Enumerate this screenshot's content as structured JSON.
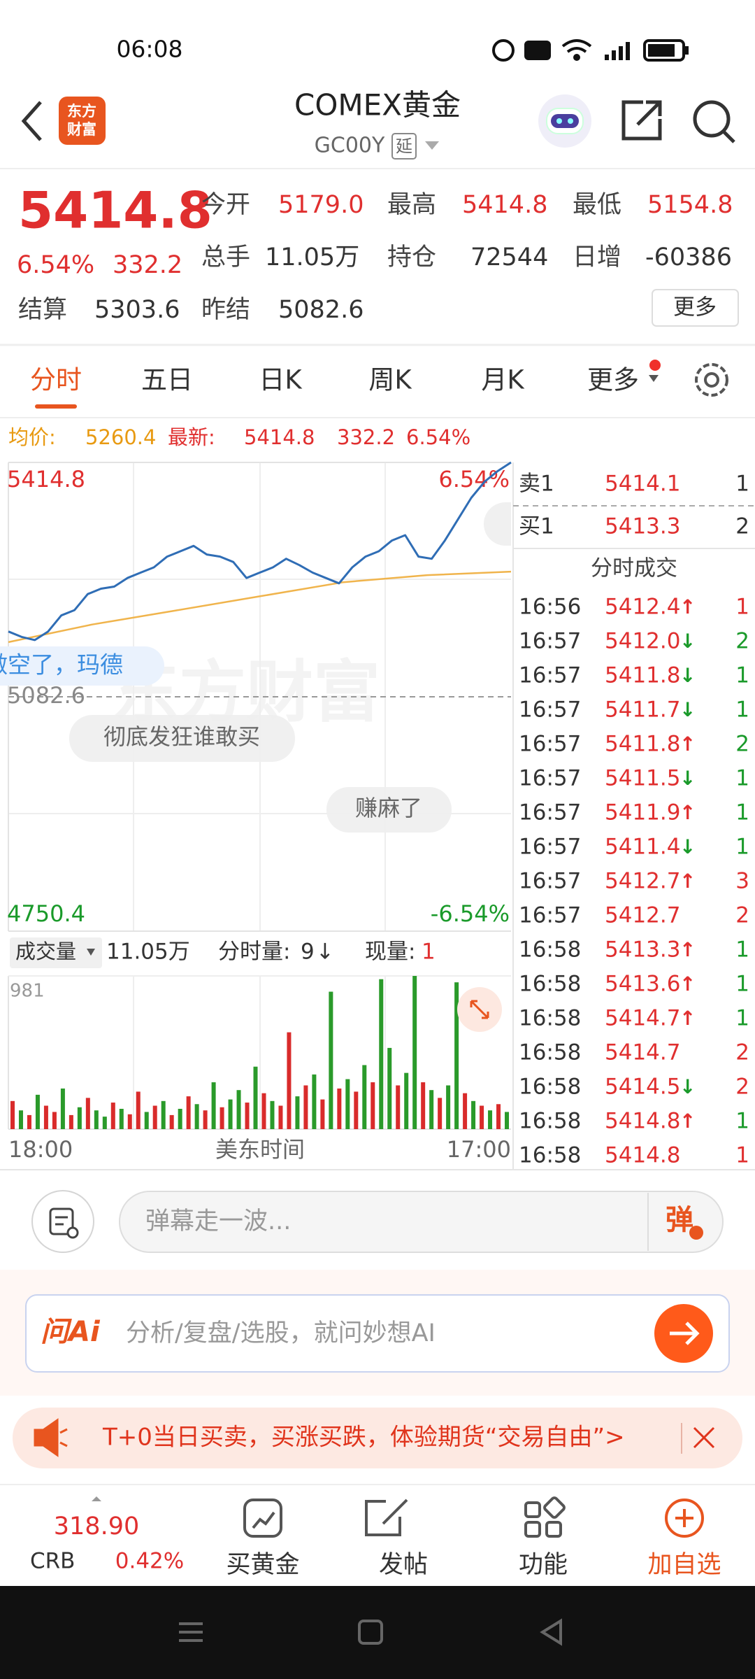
{
  "status_bar": {
    "time": "06:08"
  },
  "header": {
    "logo": [
      "东方",
      "财富"
    ],
    "title": "COMEX黄金",
    "code": "GC00Y",
    "badge": "延"
  },
  "quote": {
    "price": "5414.8",
    "change_pct": "6.54%",
    "change": "332.2",
    "stats": [
      {
        "label": "今开",
        "value": "5179.0",
        "color": "#e02f2f"
      },
      {
        "label": "最高",
        "value": "5414.8",
        "color": "#e02f2f"
      },
      {
        "label": "最低",
        "value": "5154.8",
        "color": "#e02f2f"
      },
      {
        "label": "总手",
        "value": "11.05万",
        "color": "#333333"
      },
      {
        "label": "持仓",
        "value": "72544",
        "color": "#333333"
      },
      {
        "label": "日增",
        "value": "-60386",
        "color": "#333333"
      },
      {
        "label": "结算",
        "value": "5303.6",
        "color": "#333333"
      },
      {
        "label": "昨结",
        "value": "5082.6",
        "color": "#333333"
      }
    ],
    "more": "更多"
  },
  "tabs": [
    "分时",
    "五日",
    "日K",
    "周K",
    "月K",
    "更多"
  ],
  "info": {
    "avg_label": "均价:",
    "avg": "5260.4",
    "last_label": "最新:",
    "last": "5414.8",
    "change": "332.2",
    "change_pct": "6.54%"
  },
  "chart_data": [
    {
      "type": "line",
      "series": [
        {
          "color": "#2f6db5",
          "values": [
            5175.1,
            5167.5,
            5163.0,
            5175.1,
            5197.9,
            5205.5,
            5228.2,
            5235.8,
            5238.8,
            5251.0,
            5258.6,
            5266.1,
            5281.3,
            5288.9,
            5296.5,
            5284.3,
            5281.3,
            5273.7,
            5251.0,
            5258.6,
            5266.1,
            5278.3,
            5269.2,
            5258.6,
            5251.0,
            5243.4,
            5266.1,
            5281.3,
            5288.9,
            5304.1,
            5311.7,
            5281.3,
            5278.3,
            5304.1,
            5334.4,
            5364.7,
            5387.5,
            5402.7,
            5414.8
          ]
        },
        {
          "color": "#f0b44c",
          "values": [
            5160,
            5185,
            5205,
            5225,
            5245,
            5255,
            5260
          ]
        }
      ],
      "ylim": [
        4750.4,
        5414.8
      ],
      "yticks": [
        4750.4,
        5082.6,
        5414.8
      ],
      "y2lim": [
        -6.54,
        6.54
      ],
      "y2ticks": [
        {
          "value": -6.54,
          "label": "-6.54%"
        },
        {
          "value": 6.54,
          "label": "6.54%"
        }
      ],
      "x_labels": [
        "18:00",
        "17:00"
      ],
      "xlabel": "美东时间",
      "grid": true
    },
    {
      "type": "bar",
      "header": {
        "label": "成交量",
        "total": "11.05万",
        "minute_label": "分时量:",
        "minute_value": "9",
        "minute_arrow": "↓",
        "current_label": "现量:",
        "current_value": "1"
      },
      "values": [
        180,
        120,
        90,
        220,
        150,
        110,
        260,
        90,
        140,
        200,
        120,
        80,
        170,
        130,
        95,
        240,
        110,
        150,
        180,
        90,
        130,
        210,
        160,
        120,
        300,
        140,
        190,
        250,
        170,
        400,
        230,
        180,
        150,
        620,
        210,
        280,
        350,
        190,
        880,
        260,
        320,
        240,
        410,
        300,
        960,
        520,
        280,
        360,
        981,
        300,
        250,
        200,
        280,
        940,
        230,
        180,
        150,
        120,
        160,
        110
      ],
      "colors": [
        "#d92b2b",
        "#2a9a2a",
        "#d92b2b",
        "#2a9a2a",
        "#d92b2b",
        "#d92b2b",
        "#2a9a2a",
        "#d92b2b",
        "#2a9a2a",
        "#d92b2b",
        "#2a9a2a",
        "#2a9a2a",
        "#d92b2b",
        "#2a9a2a",
        "#d92b2b",
        "#d92b2b",
        "#2a9a2a",
        "#d92b2b",
        "#2a9a2a",
        "#d92b2b",
        "#2a9a2a",
        "#d92b2b",
        "#2a9a2a",
        "#d92b2b",
        "#2a9a2a",
        "#d92b2b",
        "#2a9a2a",
        "#2a9a2a",
        "#d92b2b",
        "#2a9a2a",
        "#d92b2b",
        "#2a9a2a",
        "#d92b2b",
        "#d92b2b",
        "#2a9a2a",
        "#d92b2b",
        "#2a9a2a",
        "#d92b2b",
        "#2a9a2a",
        "#d92b2b",
        "#2a9a2a",
        "#d92b2b",
        "#2a9a2a",
        "#d92b2b",
        "#2a9a2a",
        "#2a9a2a",
        "#d92b2b",
        "#2a9a2a",
        "#2a9a2a",
        "#d92b2b",
        "#2a9a2a",
        "#d92b2b",
        "#2a9a2a",
        "#2a9a2a",
        "#d92b2b",
        "#2a9a2a",
        "#d92b2b",
        "#2a9a2a",
        "#d92b2b",
        "#2a9a2a"
      ],
      "ylim": [
        0,
        981
      ],
      "yticks": [
        981
      ]
    }
  ],
  "order_book": {
    "ask": {
      "label": "卖1",
      "price": "5414.1",
      "volume": "1"
    },
    "bid": {
      "label": "买1",
      "price": "5413.3",
      "volume": "2"
    },
    "title": "分时成交",
    "trades": [
      {
        "time": "16:56",
        "price": "5412.4",
        "arrow": "↑",
        "arrow_color": "#e02f2f",
        "volume": "1",
        "volume_color": "#e02f2f"
      },
      {
        "time": "16:57",
        "price": "5412.0",
        "arrow": "↓",
        "arrow_color": "#1a9a2a",
        "volume": "2",
        "volume_color": "#1a9a2a"
      },
      {
        "time": "16:57",
        "price": "5411.8",
        "arrow": "↓",
        "arrow_color": "#1a9a2a",
        "volume": "1",
        "volume_color": "#1a9a2a"
      },
      {
        "time": "16:57",
        "price": "5411.7",
        "arrow": "↓",
        "arrow_color": "#1a9a2a",
        "volume": "1",
        "volume_color": "#1a9a2a"
      },
      {
        "time": "16:57",
        "price": "5411.8",
        "arrow": "↑",
        "arrow_color": "#e02f2f",
        "volume": "2",
        "volume_color": "#1a9a2a"
      },
      {
        "time": "16:57",
        "price": "5411.5",
        "arrow": "↓",
        "arrow_color": "#1a9a2a",
        "volume": "1",
        "volume_color": "#1a9a2a"
      },
      {
        "time": "16:57",
        "price": "5411.9",
        "arrow": "↑",
        "arrow_color": "#e02f2f",
        "volume": "1",
        "volume_color": "#1a9a2a"
      },
      {
        "time": "16:57",
        "price": "5411.4",
        "arrow": "↓",
        "arrow_color": "#1a9a2a",
        "volume": "1",
        "volume_color": "#1a9a2a"
      },
      {
        "time": "16:57",
        "price": "5412.7",
        "arrow": "↑",
        "arrow_color": "#e02f2f",
        "volume": "3",
        "volume_color": "#e02f2f"
      },
      {
        "time": "16:57",
        "price": "5412.7",
        "volume": "2",
        "volume_color": "#e02f2f"
      },
      {
        "time": "16:58",
        "price": "5413.3",
        "arrow": "↑",
        "arrow_color": "#e02f2f",
        "volume": "1",
        "volume_color": "#1a9a2a"
      },
      {
        "time": "16:58",
        "price": "5413.6",
        "arrow": "↑",
        "arrow_color": "#e02f2f",
        "volume": "1",
        "volume_color": "#1a9a2a"
      },
      {
        "time": "16:58",
        "price": "5414.7",
        "arrow": "↑",
        "arrow_color": "#e02f2f",
        "volume": "1",
        "volume_color": "#1a9a2a"
      },
      {
        "time": "16:58",
        "price": "5414.7",
        "volume": "2",
        "volume_color": "#e02f2f"
      },
      {
        "time": "16:58",
        "price": "5414.5",
        "arrow": "↓",
        "arrow_color": "#1a9a2a",
        "volume": "2",
        "volume_color": "#e02f2f"
      },
      {
        "time": "16:58",
        "price": "5414.8",
        "arrow": "↑",
        "arrow_color": "#e02f2f",
        "volume": "1",
        "volume_color": "#1a9a2a"
      },
      {
        "time": "16:58",
        "price": "5414.8",
        "volume": "1",
        "volume_color": "#e02f2f"
      }
    ]
  },
  "danmaku": [
    "做空了，玛德",
    "彻底发狂谁敢买",
    "赚麻了"
  ],
  "watermark": "东方财富",
  "comment": {
    "placeholder": "弹幕走一波...",
    "button": "弹"
  },
  "ai": {
    "logo": "问Ai",
    "placeholder": "分析/复盘/选股，就问妙想AI"
  },
  "banner": {
    "text": "T+0当日买卖，买涨买跌，体验期货“交易自由”>"
  },
  "nav": {
    "index": {
      "value": "318.90",
      "name": "CRB",
      "change": "0.42%"
    },
    "items": [
      "买黄金",
      "发帖",
      "功能",
      "加自选"
    ]
  }
}
